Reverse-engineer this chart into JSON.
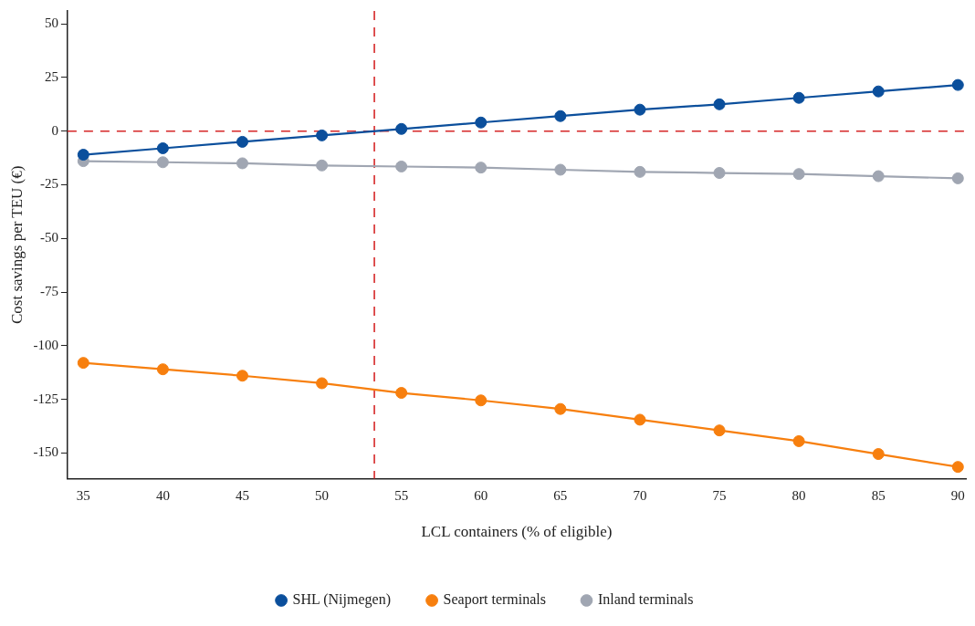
{
  "chart_data": {
    "type": "line",
    "xlabel": "LCL containers (% of eligible)",
    "ylabel": "Cost savings per TEU (€)",
    "x": [
      35,
      40,
      45,
      50,
      55,
      60,
      65,
      70,
      75,
      80,
      85,
      90
    ],
    "series": [
      {
        "name": "SHL (Nijmegen)",
        "color": "#0b4f9c",
        "values": [
          -11,
          -8,
          -5,
          -2,
          1,
          4,
          7,
          10,
          12.5,
          15.5,
          18.5,
          21.5
        ]
      },
      {
        "name": "Seaport terminals",
        "color": "#f77f0e",
        "values": [
          -108,
          -111,
          -114,
          -117.5,
          -122,
          -125.5,
          -129.5,
          -134.5,
          -139.5,
          -144.5,
          -150.5,
          -156.5
        ]
      },
      {
        "name": "Inland terminals",
        "color": "#a0a6b2",
        "values": [
          -14,
          -14.5,
          -15,
          -16,
          -16.5,
          -17,
          -18,
          -19,
          -19.5,
          -20,
          -21,
          -22
        ]
      }
    ],
    "xlim": [
      34,
      90.5
    ],
    "ylim": [
      -162,
      56
    ],
    "xticks": [
      35,
      40,
      45,
      50,
      55,
      60,
      65,
      70,
      75,
      80,
      85,
      90
    ],
    "yticks": [
      -150,
      -125,
      -100,
      -75,
      -50,
      -25,
      0,
      25,
      50
    ],
    "ref_lines": [
      {
        "axis": "y",
        "value": 0,
        "color": "#d62728",
        "line_style": "dashed"
      },
      {
        "axis": "x",
        "value": 53.3,
        "color": "#d62728",
        "line_style": "dashed"
      }
    ],
    "grid": false,
    "legend": "bottom",
    "marker": "circle",
    "line_style": "solid"
  }
}
